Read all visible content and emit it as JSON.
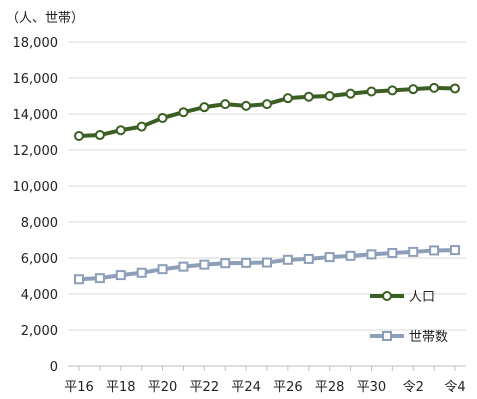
{
  "chart_data": {
    "type": "line",
    "unit_label": "（人、世帯）",
    "x": [
      "平16",
      "平17",
      "平18",
      "平19",
      "平20",
      "平21",
      "平22",
      "平23",
      "平24",
      "平25",
      "平26",
      "平27",
      "平28",
      "平29",
      "平30",
      "平31",
      "令2",
      "令3",
      "令4"
    ],
    "x_tick_labels": [
      "平16",
      "平18",
      "平20",
      "平22",
      "平24",
      "平26",
      "平28",
      "平30",
      "令2",
      "令4"
    ],
    "ylim": [
      0,
      18000
    ],
    "y_ticks": [
      0,
      2000,
      4000,
      6000,
      8000,
      10000,
      12000,
      14000,
      16000,
      18000
    ],
    "y_tick_labels": [
      "0",
      "2,000",
      "4,000",
      "6,000",
      "8,000",
      "10,000",
      "12,000",
      "14,000",
      "16,000",
      "18,000"
    ],
    "grid": true,
    "legend_position": "right",
    "series": [
      {
        "name": "人口",
        "color": "#3b5e22",
        "marker": "circle",
        "values": [
          12780,
          12830,
          13100,
          13300,
          13780,
          14100,
          14380,
          14550,
          14450,
          14550,
          14880,
          14960,
          15000,
          15130,
          15250,
          15310,
          15380,
          15450,
          15420
        ]
      },
      {
        "name": "世帯数",
        "color": "#8d9fb8",
        "marker": "square",
        "values": [
          4820,
          4880,
          5050,
          5180,
          5380,
          5520,
          5630,
          5710,
          5730,
          5750,
          5900,
          5950,
          6050,
          6120,
          6200,
          6280,
          6340,
          6420,
          6440
        ]
      }
    ]
  }
}
